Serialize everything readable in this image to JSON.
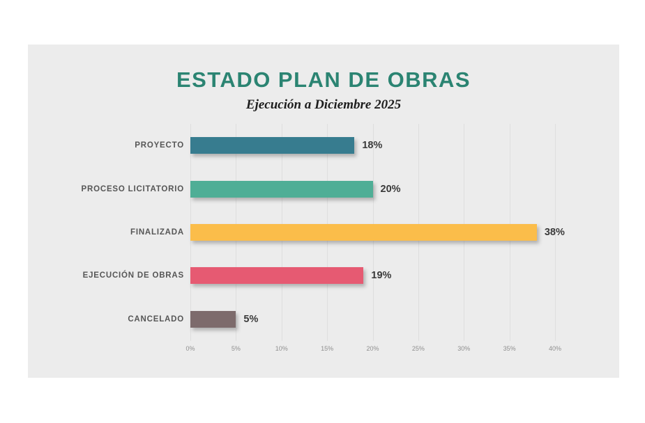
{
  "header": {
    "title": "ESTADO PLAN DE OBRAS",
    "subtitle": "Ejecución a Diciembre 2025",
    "title_color": "#2B8472"
  },
  "card_background": "#ECECEC",
  "chart_data": {
    "type": "bar",
    "orientation": "horizontal",
    "title": "ESTADO PLAN DE OBRAS",
    "subtitle": "Ejecución a Diciembre 2025",
    "categories": [
      "PROYECTO",
      "PROCESO LICITATORIO",
      "FINALIZADA",
      "EJECUCIÓN DE OBRAS",
      "CANCELADO"
    ],
    "values": [
      18,
      20,
      38,
      19,
      5
    ],
    "value_labels": [
      "18%",
      "20%",
      "38%",
      "19%",
      "5%"
    ],
    "bar_colors": [
      "#377C8F",
      "#4FAE96",
      "#FBBD4A",
      "#E65A72",
      "#7D6B6C"
    ],
    "xlabel": "",
    "ylabel": "",
    "xlim": [
      0,
      40
    ],
    "x_tick_values": [
      0,
      5,
      10,
      15,
      20,
      25,
      30,
      35,
      40
    ],
    "x_tick_labels": [
      "0%",
      "5%",
      "10%",
      "15%",
      "20%",
      "25%",
      "30%",
      "35%",
      "40%"
    ],
    "grid": true,
    "legend": false
  }
}
